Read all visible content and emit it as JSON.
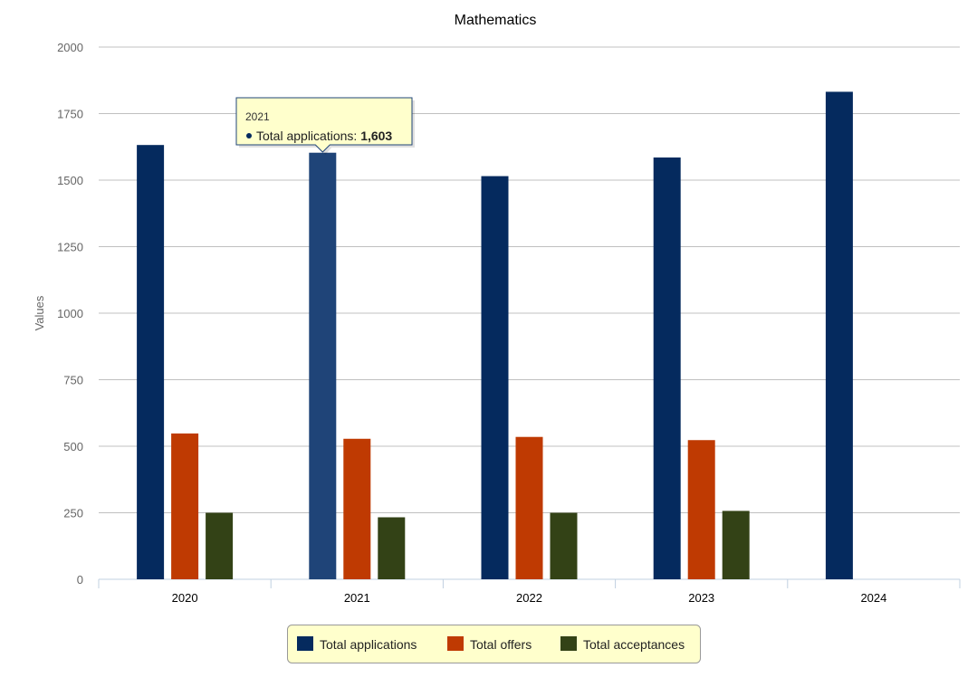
{
  "chart_data": {
    "type": "bar",
    "title": "Mathematics",
    "ylabel": "Values",
    "xlabel": "",
    "ylim": [
      0,
      2000
    ],
    "yticks": [
      0,
      250,
      500,
      750,
      1000,
      1250,
      1500,
      1750,
      2000
    ],
    "grid": true,
    "legend_position": "bottom-center",
    "categories": [
      "2020",
      "2021",
      "2022",
      "2023",
      "2024"
    ],
    "series": [
      {
        "name": "Total applications",
        "color": "#052A5E",
        "values": [
          1632,
          1603,
          1515,
          1585,
          1832
        ]
      },
      {
        "name": "Total offers",
        "color": "#BF3A02",
        "values": [
          548,
          528,
          535,
          523,
          null
        ]
      },
      {
        "name": "Total acceptances",
        "color": "#334216",
        "values": [
          250,
          233,
          250,
          257,
          null
        ]
      }
    ],
    "tooltip": {
      "category": "2021",
      "series_label": "Total applications",
      "value_text": "1,603"
    }
  }
}
